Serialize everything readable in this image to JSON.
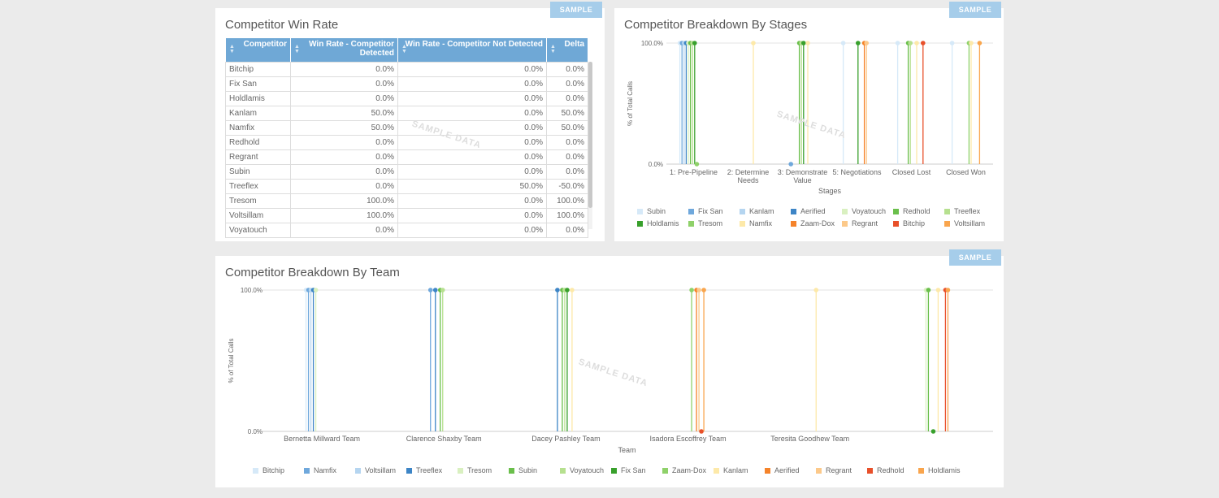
{
  "badge": "SAMPLE",
  "watermark": "SAMPLE DATA",
  "win_rate": {
    "title": "Competitor Win Rate",
    "columns": [
      "Competitor",
      "Win Rate - Competitor Detected",
      "Win Rate - Competitor Not Detected",
      "Delta"
    ],
    "rows": [
      [
        "Bitchip",
        "0.0%",
        "0.0%",
        "0.0%"
      ],
      [
        "Fix San",
        "0.0%",
        "0.0%",
        "0.0%"
      ],
      [
        "Holdlamis",
        "0.0%",
        "0.0%",
        "0.0%"
      ],
      [
        "Kanlam",
        "50.0%",
        "0.0%",
        "50.0%"
      ],
      [
        "Namfix",
        "50.0%",
        "0.0%",
        "50.0%"
      ],
      [
        "Redhold",
        "0.0%",
        "0.0%",
        "0.0%"
      ],
      [
        "Regrant",
        "0.0%",
        "0.0%",
        "0.0%"
      ],
      [
        "Subin",
        "0.0%",
        "0.0%",
        "0.0%"
      ],
      [
        "Treeflex",
        "0.0%",
        "50.0%",
        "-50.0%"
      ],
      [
        "Tresom",
        "100.0%",
        "0.0%",
        "100.0%"
      ],
      [
        "Voltsillam",
        "100.0%",
        "0.0%",
        "100.0%"
      ],
      [
        "Voyatouch",
        "0.0%",
        "0.0%",
        "0.0%"
      ]
    ]
  },
  "chart_data": [
    {
      "type": "scatter",
      "title": "Competitor Breakdown By Stages",
      "xlabel": "Stages",
      "ylabel": "% of Total Calls",
      "ylim": [
        0,
        100
      ],
      "yticks": [
        "0.0%",
        "100.0%"
      ],
      "grid": true,
      "legend": "bottom",
      "categories": [
        "1: Pre-Pipeline",
        "2: Determine Needs",
        "3: Demonstrate Value",
        "5: Negotiations",
        "Closed Lost",
        "Closed Won"
      ],
      "series": [
        {
          "name": "Subin",
          "color": "#d6e9f8",
          "values": [
            100,
            null,
            null,
            100,
            100,
            100
          ]
        },
        {
          "name": "Fix San",
          "color": "#6fa8dc",
          "values": [
            100,
            null,
            0,
            null,
            null,
            null
          ]
        },
        {
          "name": "Kanlam",
          "color": "#b5d5f0",
          "values": [
            100,
            null,
            null,
            null,
            null,
            null
          ]
        },
        {
          "name": "Aerified",
          "color": "#3d85c6",
          "values": [
            100,
            null,
            null,
            null,
            null,
            null
          ]
        },
        {
          "name": "Voyatouch",
          "color": "#d9f0c0",
          "values": [
            100,
            null,
            null,
            null,
            null,
            null
          ]
        },
        {
          "name": "Redhold",
          "color": "#6abf4b",
          "values": [
            100,
            null,
            100,
            null,
            100,
            null
          ]
        },
        {
          "name": "Treeflex",
          "color": "#b6e08f",
          "values": [
            100,
            null,
            100,
            null,
            100,
            null
          ]
        },
        {
          "name": "Holdlamis",
          "color": "#38a02c",
          "values": [
            100,
            null,
            100,
            100,
            null,
            null
          ]
        },
        {
          "name": "Tresom",
          "color": "#8fd16a",
          "values": [
            0,
            null,
            null,
            null,
            null,
            100
          ]
        },
        {
          "name": "Namfix",
          "color": "#fde9a9",
          "values": [
            null,
            100,
            100,
            null,
            100,
            100
          ]
        },
        {
          "name": "Zaam-Dox",
          "color": "#f5832a",
          "values": [
            null,
            null,
            null,
            100,
            null,
            null
          ]
        },
        {
          "name": "Regrant",
          "color": "#fcc98a",
          "values": [
            null,
            null,
            null,
            100,
            null,
            null
          ]
        },
        {
          "name": "Bitchip",
          "color": "#e8502a",
          "values": [
            null,
            null,
            null,
            null,
            100,
            null
          ]
        },
        {
          "name": "Voltsillam",
          "color": "#f9a54d",
          "values": [
            null,
            null,
            null,
            null,
            null,
            100
          ]
        }
      ]
    },
    {
      "type": "scatter",
      "title": "Competitor Breakdown By Team",
      "xlabel": "Team",
      "ylabel": "% of Total Calls",
      "ylim": [
        0,
        100
      ],
      "yticks": [
        "0.0%",
        "100.0%"
      ],
      "grid": true,
      "legend": "bottom",
      "categories": [
        "Bernetta Millward Team",
        "Clarence Shaxby Team",
        "Dacey Pashley Team",
        "Isadora Escoffrey Team",
        "Teresita Goodhew Team",
        ""
      ],
      "series": [
        {
          "name": "Bitchip",
          "color": "#d6e9f8",
          "values": [
            100,
            null,
            null,
            null,
            null,
            null
          ]
        },
        {
          "name": "Namfix",
          "color": "#6fa8dc",
          "values": [
            100,
            100,
            null,
            null,
            null,
            null
          ]
        },
        {
          "name": "Voltsillam",
          "color": "#b5d5f0",
          "values": [
            100,
            null,
            null,
            null,
            null,
            null
          ]
        },
        {
          "name": "Treeflex",
          "color": "#3d85c6",
          "values": [
            100,
            100,
            100,
            null,
            null,
            null
          ]
        },
        {
          "name": "Tresom",
          "color": "#d9f0c0",
          "values": [
            100,
            null,
            null,
            null,
            null,
            100
          ]
        },
        {
          "name": "Subin",
          "color": "#6abf4b",
          "values": [
            null,
            100,
            100,
            null,
            null,
            100
          ]
        },
        {
          "name": "Voyatouch",
          "color": "#b6e08f",
          "values": [
            null,
            100,
            100,
            null,
            null,
            null
          ]
        },
        {
          "name": "Fix San",
          "color": "#38a02c",
          "values": [
            null,
            null,
            100,
            null,
            null,
            0
          ]
        },
        {
          "name": "Zaam-Dox",
          "color": "#8fd16a",
          "values": [
            null,
            null,
            null,
            100,
            null,
            null
          ]
        },
        {
          "name": "Kanlam",
          "color": "#fde9a9",
          "values": [
            null,
            null,
            100,
            null,
            100,
            100
          ]
        },
        {
          "name": "Aerified",
          "color": "#f5832a",
          "values": [
            null,
            null,
            null,
            100,
            null,
            null
          ]
        },
        {
          "name": "Regrant",
          "color": "#fcc98a",
          "values": [
            null,
            null,
            null,
            100,
            null,
            null
          ]
        },
        {
          "name": "Redhold",
          "color": "#e8502a",
          "values": [
            null,
            null,
            null,
            0,
            null,
            100
          ]
        },
        {
          "name": "Holdlamis",
          "color": "#f9a54d",
          "values": [
            null,
            null,
            null,
            100,
            null,
            100
          ]
        }
      ]
    }
  ]
}
